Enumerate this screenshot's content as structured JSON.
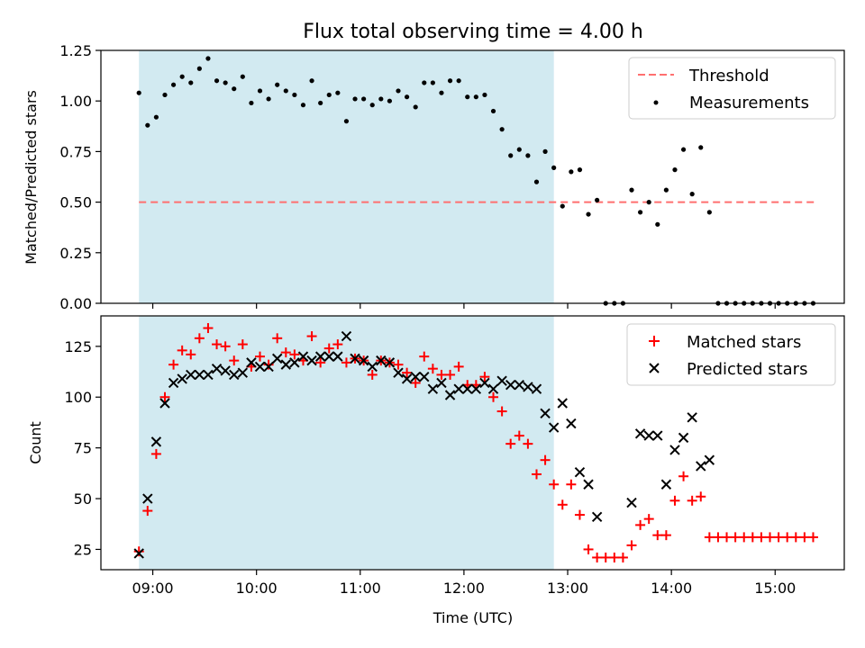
{
  "title": "Flux total observing time = 4.00 h",
  "colors": {
    "shade": "#add8e6",
    "threshold": "#ff6f6f",
    "measurements": "#000000",
    "matched": "#ff0000",
    "predicted": "#000000"
  },
  "chart_data": [
    {
      "type": "scatter",
      "ylabel": "Matched/Predicted stars",
      "xlabel": "",
      "ylim": [
        0,
        1.25
      ],
      "xlim": [
        "08:30",
        "15:40"
      ],
      "yticks": [
        "0.00",
        "0.25",
        "0.50",
        "0.75",
        "1.00",
        "1.25"
      ],
      "grid": false,
      "legend_position": "top-right",
      "shaded_region": {
        "x_start": "08:52",
        "x_end": "12:52"
      },
      "threshold": {
        "name": "Threshold",
        "y": 0.5,
        "x_start": "08:52",
        "x_end": "15:24"
      },
      "series": [
        {
          "name": "Measurements",
          "marker": "dot",
          "points": [
            [
              "08:52",
              1.04
            ],
            [
              "08:57",
              0.88
            ],
            [
              "09:02",
              0.92
            ],
            [
              "09:07",
              1.03
            ],
            [
              "09:12",
              1.08
            ],
            [
              "09:17",
              1.12
            ],
            [
              "09:22",
              1.09
            ],
            [
              "09:27",
              1.16
            ],
            [
              "09:32",
              1.21
            ],
            [
              "09:37",
              1.1
            ],
            [
              "09:42",
              1.09
            ],
            [
              "09:47",
              1.06
            ],
            [
              "09:52",
              1.12
            ],
            [
              "09:57",
              0.99
            ],
            [
              "10:02",
              1.05
            ],
            [
              "10:07",
              1.01
            ],
            [
              "10:12",
              1.08
            ],
            [
              "10:17",
              1.05
            ],
            [
              "10:22",
              1.03
            ],
            [
              "10:27",
              0.98
            ],
            [
              "10:32",
              1.1
            ],
            [
              "10:37",
              0.99
            ],
            [
              "10:42",
              1.03
            ],
            [
              "10:47",
              1.04
            ],
            [
              "10:52",
              0.9
            ],
            [
              "10:57",
              1.01
            ],
            [
              "11:02",
              1.01
            ],
            [
              "11:07",
              0.98
            ],
            [
              "11:12",
              1.01
            ],
            [
              "11:17",
              1.0
            ],
            [
              "11:22",
              1.05
            ],
            [
              "11:27",
              1.02
            ],
            [
              "11:32",
              0.97
            ],
            [
              "11:37",
              1.09
            ],
            [
              "11:42",
              1.09
            ],
            [
              "11:47",
              1.04
            ],
            [
              "11:52",
              1.1
            ],
            [
              "11:57",
              1.1
            ],
            [
              "12:02",
              1.02
            ],
            [
              "12:07",
              1.02
            ],
            [
              "12:12",
              1.03
            ],
            [
              "12:17",
              0.95
            ],
            [
              "12:22",
              0.86
            ],
            [
              "12:27",
              0.73
            ],
            [
              "12:32",
              0.76
            ],
            [
              "12:37",
              0.73
            ],
            [
              "12:42",
              0.6
            ],
            [
              "12:47",
              0.75
            ],
            [
              "12:52",
              0.67
            ],
            [
              "12:57",
              0.48
            ],
            [
              "13:02",
              0.65
            ],
            [
              "13:07",
              0.66
            ],
            [
              "13:12",
              0.44
            ],
            [
              "13:17",
              0.51
            ],
            [
              "13:22",
              0.0
            ],
            [
              "13:27",
              0.0
            ],
            [
              "13:32",
              0.0
            ],
            [
              "13:37",
              0.56
            ],
            [
              "13:42",
              0.45
            ],
            [
              "13:47",
              0.5
            ],
            [
              "13:52",
              0.39
            ],
            [
              "13:57",
              0.56
            ],
            [
              "14:02",
              0.66
            ],
            [
              "14:07",
              0.76
            ],
            [
              "14:12",
              0.54
            ],
            [
              "14:17",
              0.77
            ],
            [
              "14:22",
              0.45
            ],
            [
              "14:27",
              0.0
            ],
            [
              "14:32",
              0.0
            ],
            [
              "14:37",
              0.0
            ],
            [
              "14:42",
              0.0
            ],
            [
              "14:47",
              0.0
            ],
            [
              "14:52",
              0.0
            ],
            [
              "14:57",
              0.0
            ],
            [
              "15:02",
              0.0
            ],
            [
              "15:07",
              0.0
            ],
            [
              "15:12",
              0.0
            ],
            [
              "15:17",
              0.0
            ],
            [
              "15:22",
              0.0
            ]
          ]
        }
      ]
    },
    {
      "type": "scatter",
      "ylabel": "Count",
      "xlabel": "Time (UTC)",
      "ylim": [
        15,
        140
      ],
      "xlim": [
        "08:30",
        "15:40"
      ],
      "xticks": [
        "09:00",
        "10:00",
        "11:00",
        "12:00",
        "13:00",
        "14:00",
        "15:00"
      ],
      "yticks": [
        "25",
        "50",
        "75",
        "100",
        "125"
      ],
      "grid": false,
      "legend_position": "top-right",
      "shaded_region": {
        "x_start": "08:52",
        "x_end": "12:52"
      },
      "series": [
        {
          "name": "Matched stars",
          "marker": "plus",
          "points": [
            [
              "08:52",
              24
            ],
            [
              "08:57",
              44
            ],
            [
              "09:02",
              72
            ],
            [
              "09:07",
              100
            ],
            [
              "09:12",
              116
            ],
            [
              "09:17",
              123
            ],
            [
              "09:22",
              121
            ],
            [
              "09:27",
              129
            ],
            [
              "09:32",
              134
            ],
            [
              "09:37",
              126
            ],
            [
              "09:42",
              125
            ],
            [
              "09:47",
              118
            ],
            [
              "09:52",
              126
            ],
            [
              "09:57",
              115
            ],
            [
              "10:02",
              120
            ],
            [
              "10:07",
              116
            ],
            [
              "10:12",
              129
            ],
            [
              "10:17",
              122
            ],
            [
              "10:22",
              121
            ],
            [
              "10:27",
              118
            ],
            [
              "10:32",
              130
            ],
            [
              "10:37",
              117
            ],
            [
              "10:42",
              124
            ],
            [
              "10:47",
              126
            ],
            [
              "10:52",
              117
            ],
            [
              "10:57",
              119
            ],
            [
              "11:02",
              118
            ],
            [
              "11:07",
              111
            ],
            [
              "11:12",
              118
            ],
            [
              "11:17",
              117
            ],
            [
              "11:22",
              116
            ],
            [
              "11:27",
              112
            ],
            [
              "11:32",
              107
            ],
            [
              "11:37",
              120
            ],
            [
              "11:42",
              114
            ],
            [
              "11:47",
              111
            ],
            [
              "11:52",
              111
            ],
            [
              "11:57",
              115
            ],
            [
              "12:02",
              106
            ],
            [
              "12:07",
              106
            ],
            [
              "12:12",
              110
            ],
            [
              "12:17",
              100
            ],
            [
              "12:22",
              93
            ],
            [
              "12:27",
              77
            ],
            [
              "12:32",
              81
            ],
            [
              "12:37",
              77
            ],
            [
              "12:42",
              62
            ],
            [
              "12:47",
              69
            ],
            [
              "12:52",
              57
            ],
            [
              "12:57",
              47
            ],
            [
              "13:02",
              57
            ],
            [
              "13:07",
              42
            ],
            [
              "13:12",
              25
            ],
            [
              "13:17",
              21
            ],
            [
              "13:22",
              21
            ],
            [
              "13:27",
              21
            ],
            [
              "13:32",
              21
            ],
            [
              "13:37",
              27
            ],
            [
              "13:42",
              37
            ],
            [
              "13:47",
              40
            ],
            [
              "13:52",
              32
            ],
            [
              "13:57",
              32
            ],
            [
              "14:02",
              49
            ],
            [
              "14:07",
              61
            ],
            [
              "14:12",
              49
            ],
            [
              "14:17",
              51
            ],
            [
              "14:22",
              31
            ],
            [
              "14:27",
              31
            ],
            [
              "14:32",
              31
            ],
            [
              "14:37",
              31
            ],
            [
              "14:42",
              31
            ],
            [
              "14:47",
              31
            ],
            [
              "14:52",
              31
            ],
            [
              "14:57",
              31
            ],
            [
              "15:02",
              31
            ],
            [
              "15:07",
              31
            ],
            [
              "15:12",
              31
            ],
            [
              "15:17",
              31
            ],
            [
              "15:22",
              31
            ]
          ]
        },
        {
          "name": "Predicted stars",
          "marker": "x",
          "points": [
            [
              "08:52",
              23
            ],
            [
              "08:57",
              50
            ],
            [
              "09:02",
              78
            ],
            [
              "09:07",
              97
            ],
            [
              "09:12",
              107
            ],
            [
              "09:17",
              109
            ],
            [
              "09:22",
              111
            ],
            [
              "09:27",
              111
            ],
            [
              "09:32",
              111
            ],
            [
              "09:37",
              114
            ],
            [
              "09:42",
              113
            ],
            [
              "09:47",
              111
            ],
            [
              "09:52",
              112
            ],
            [
              "09:57",
              117
            ],
            [
              "10:02",
              115
            ],
            [
              "10:07",
              115
            ],
            [
              "10:12",
              119
            ],
            [
              "10:17",
              116
            ],
            [
              "10:22",
              117
            ],
            [
              "10:27",
              120
            ],
            [
              "10:32",
              118
            ],
            [
              "10:37",
              120
            ],
            [
              "10:42",
              120
            ],
            [
              "10:47",
              120
            ],
            [
              "10:52",
              130
            ],
            [
              "10:57",
              119
            ],
            [
              "11:02",
              118
            ],
            [
              "11:07",
              115
            ],
            [
              "11:12",
              118
            ],
            [
              "11:17",
              117
            ],
            [
              "11:22",
              112
            ],
            [
              "11:27",
              109
            ],
            [
              "11:32",
              110
            ],
            [
              "11:37",
              110
            ],
            [
              "11:42",
              104
            ],
            [
              "11:47",
              107
            ],
            [
              "11:52",
              101
            ],
            [
              "11:57",
              104
            ],
            [
              "12:02",
              104
            ],
            [
              "12:07",
              104
            ],
            [
              "12:12",
              107
            ],
            [
              "12:17",
              104
            ],
            [
              "12:22",
              108
            ],
            [
              "12:27",
              106
            ],
            [
              "12:32",
              106
            ],
            [
              "12:37",
              105
            ],
            [
              "12:42",
              104
            ],
            [
              "12:47",
              92
            ],
            [
              "12:52",
              85
            ],
            [
              "12:57",
              97
            ],
            [
              "13:02",
              87
            ],
            [
              "13:07",
              63
            ],
            [
              "13:12",
              57
            ],
            [
              "13:17",
              41
            ],
            [
              "13:37",
              48
            ],
            [
              "13:42",
              82
            ],
            [
              "13:47",
              81
            ],
            [
              "13:52",
              81
            ],
            [
              "13:57",
              57
            ],
            [
              "14:02",
              74
            ],
            [
              "14:07",
              80
            ],
            [
              "14:12",
              90
            ],
            [
              "14:17",
              66
            ],
            [
              "14:22",
              69
            ]
          ]
        }
      ]
    }
  ]
}
